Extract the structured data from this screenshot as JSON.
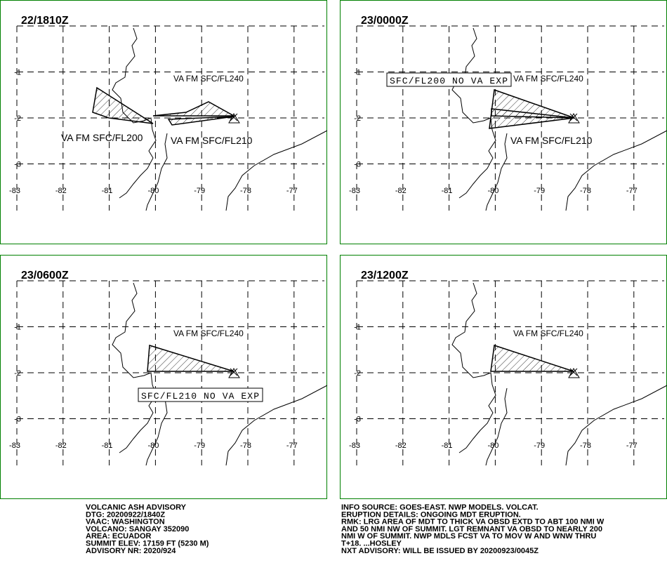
{
  "panels": [
    {
      "time": "22/1810Z",
      "labels": [
        "VA FM SFC/FL240",
        "VA FM SFC/FL200",
        "VA FM SFC/FL210"
      ]
    },
    {
      "time": "23/0000Z",
      "labels": [
        "SFC/FL200 NO VA EXP",
        "VA FM SFC/FL240",
        "VA FM SFC/FL210"
      ]
    },
    {
      "time": "23/0600Z",
      "labels": [
        "VA FM SFC/FL240",
        "SFC/FL210 NO VA EXP"
      ]
    },
    {
      "time": "23/1200Z",
      "labels": [
        "VA FM SFC/FL240"
      ]
    }
  ],
  "lon_ticks": [
    -83,
    -82,
    -81,
    -80,
    -79,
    -78,
    -77
  ],
  "lat_ticks": [
    -1,
    -2,
    -3
  ],
  "footer": {
    "left": [
      "VOLCANIC ASH ADVISORY",
      "DTG: 20200922/1840Z",
      "VAAC: WASHINGTON",
      "VOLCANO: SANGAY 352090",
      "AREA: ECUADOR",
      "SUMMIT ELEV: 17159 FT (5230 M)",
      "ADVISORY NR: 2020/924"
    ],
    "right": [
      "INFO SOURCE: GOES-EAST. NWP MODELS. VOLCAT.",
      "ERUPTION DETAILS: ONGOING MDT ERUPTION.",
      "RMK: LRG AREA OF MDT TO THICK VA OBSD EXTD TO ABT 100 NMI W",
      "AND 50 NMI NW OF SUMMIT. LGT REMNANT VA OBSD TO NEARLY 200",
      "NMI W OF SUMMIT. NWP MDLS FCST VA TO MOV W AND WNW THRU",
      "T+18. ...HOSLEY",
      "NXT ADVISORY: WILL BE ISSUED BY 20200923/0045Z"
    ]
  }
}
